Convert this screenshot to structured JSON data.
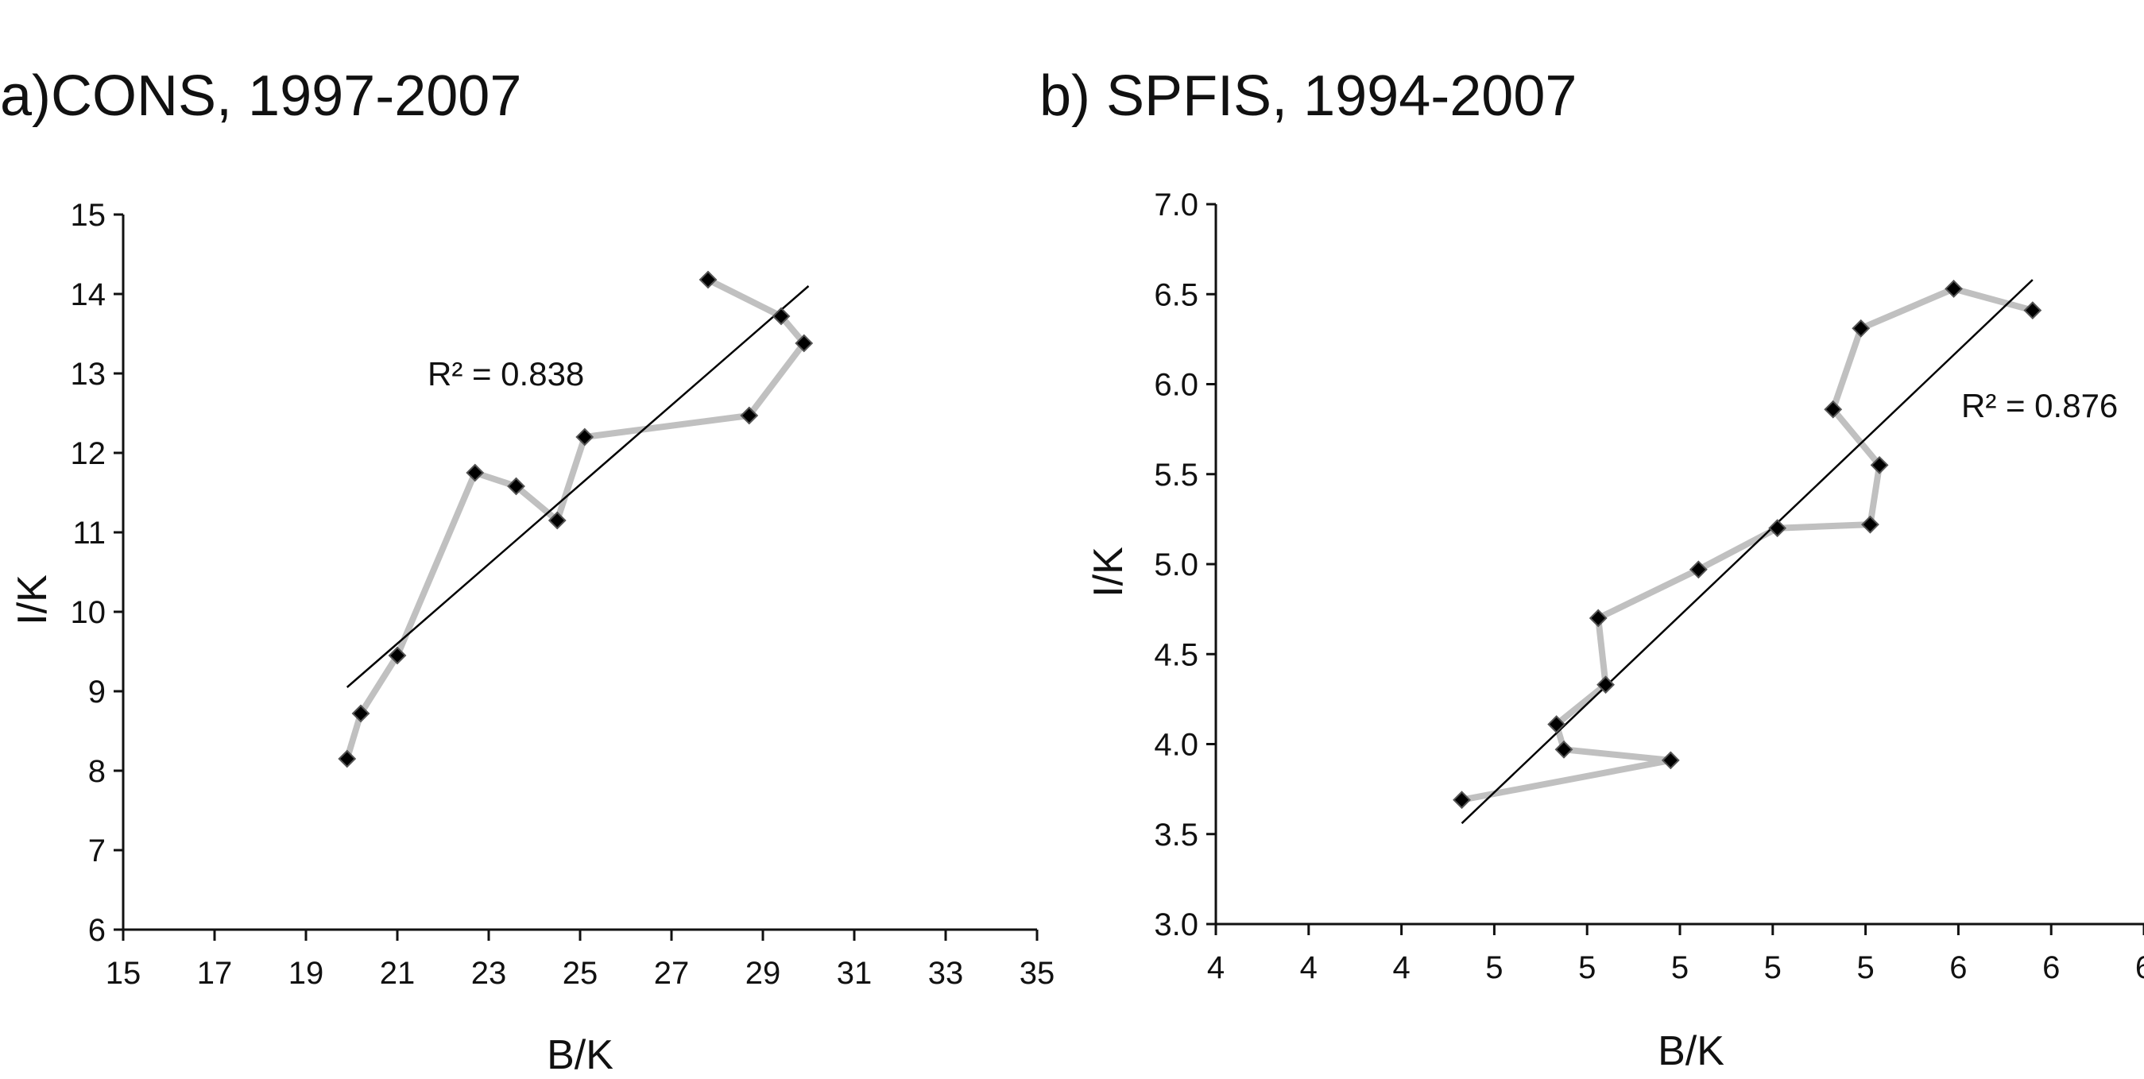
{
  "chart_data": [
    {
      "type": "scatter",
      "title": "a)CONS, 1997-2007",
      "xlabel": "B/K",
      "ylabel": "I/K",
      "xlim": [
        15,
        35
      ],
      "ylim": [
        6,
        15
      ],
      "xticks": [
        15,
        17,
        19,
        21,
        23,
        25,
        27,
        29,
        31,
        33,
        35
      ],
      "xtick_labels": [
        "15",
        "17",
        "19",
        "21",
        "23",
        "25",
        "27",
        "29",
        "31",
        "33",
        "35"
      ],
      "yticks": [
        6,
        7,
        8,
        9,
        10,
        11,
        12,
        13,
        14,
        15
      ],
      "ytick_labels": [
        "6",
        "7",
        "8",
        "9",
        "10",
        "11",
        "12",
        "13",
        "14",
        "15"
      ],
      "series": [
        {
          "connected": true,
          "x": [
            19.9,
            20.2,
            21.0,
            22.7,
            23.6,
            24.5,
            25.1,
            28.7,
            29.9,
            29.4,
            27.8
          ],
          "y": [
            8.15,
            8.72,
            9.45,
            11.75,
            11.58,
            11.15,
            12.2,
            12.47,
            13.38,
            13.72,
            14.18
          ]
        }
      ],
      "trendline": {
        "x": [
          19.9,
          30.0
        ],
        "y": [
          9.05,
          14.1
        ]
      },
      "grid": false,
      "annotation": {
        "text": "R² = 0.838"
      }
    },
    {
      "type": "scatter",
      "title": "b) SPFIS, 1994-2007",
      "xlabel": "B/K",
      "ylabel": "I/K",
      "xlim": [
        0,
        10
      ],
      "ylim": [
        3.0,
        7.0
      ],
      "xticks": [
        0,
        1,
        2,
        3,
        4,
        5,
        6,
        7,
        8,
        9,
        10
      ],
      "xtick_labels": [
        "4",
        "4",
        "4",
        "5",
        "5",
        "5",
        "5",
        "5",
        "6",
        "6",
        "6"
      ],
      "yticks": [
        3.0,
        3.5,
        4.0,
        4.5,
        5.0,
        5.5,
        6.0,
        6.5,
        7.0
      ],
      "ytick_labels": [
        "3.0",
        "3.5",
        "4.0",
        "4.5",
        "5.0",
        "5.5",
        "6.0",
        "6.5",
        "7.0"
      ],
      "series": [
        {
          "connected": true,
          "x": [
            2.65,
            4.9,
            3.75,
            3.67,
            4.2,
            4.12,
            5.2,
            6.05,
            7.05,
            7.15,
            6.65,
            6.95,
            7.95,
            8.8
          ],
          "y": [
            3.69,
            3.91,
            3.97,
            4.11,
            4.33,
            4.7,
            4.97,
            5.2,
            5.22,
            5.55,
            5.86,
            6.31,
            6.53,
            6.41
          ]
        }
      ],
      "trendline": {
        "x": [
          2.65,
          8.8
        ],
        "y": [
          3.56,
          6.58
        ]
      },
      "grid": false,
      "annotation": {
        "text": "R² = 0.876"
      }
    }
  ]
}
